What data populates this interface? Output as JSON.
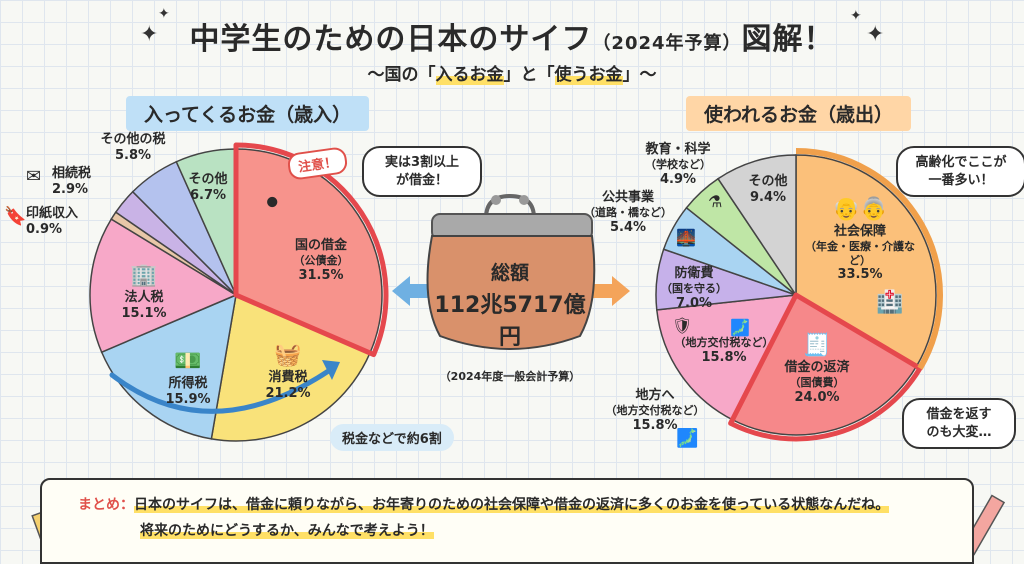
{
  "header": {
    "title": "中学生のための日本のサイフ",
    "title_year": "（2024年予算）",
    "title_end": "図解！",
    "subtitle_pre": "〜国の「",
    "subtitle_in": "入るお金",
    "subtitle_mid": "」と「",
    "subtitle_out": "使うお金",
    "subtitle_post": "」〜"
  },
  "revenue": {
    "title": "入ってくるお金（歳入）"
  },
  "expenditure": {
    "title": "使われるお金（歳出）"
  },
  "wallet": {
    "label": "総額",
    "amount": "112兆5717億円",
    "note": "（2024年度一般会計予算）"
  },
  "bubbles": {
    "debt_warning_tag": "注意！",
    "debt_warning": "実は3割以上\nが借金！",
    "elderly": "高齢化でここが\n一番多い！",
    "repay": "借金を返す\nのも大変…",
    "tax_note": "税金などで約6割"
  },
  "chart_data": [
    {
      "type": "pie",
      "title": "入ってくるお金（歳入）",
      "slices": [
        {
          "name": "国の借金",
          "sub": "（公債金）",
          "value": 31.5,
          "color": "#f7938c",
          "label": "31.5%"
        },
        {
          "name": "消費税",
          "sub": "",
          "value": 21.2,
          "color": "#f9e27a",
          "label": "21.2%"
        },
        {
          "name": "所得税",
          "sub": "",
          "value": 15.9,
          "color": "#a9d4f2",
          "label": "15.9%"
        },
        {
          "name": "法人税",
          "sub": "",
          "value": 15.1,
          "color": "#f7a8c8",
          "label": "15.1%"
        },
        {
          "name": "印紙収入",
          "sub": "",
          "value": 0.9,
          "color": "#e8c7a8",
          "label": "0.9%"
        },
        {
          "name": "相続税",
          "sub": "",
          "value": 2.9,
          "color": "#c9b3e6",
          "label": "2.9%"
        },
        {
          "name": "その他の税",
          "sub": "",
          "value": 5.8,
          "color": "#b4c2ee",
          "label": "5.8%"
        },
        {
          "name": "その他",
          "sub": "",
          "value": 6.7,
          "color": "#b9e2c2",
          "label": "6.7%"
        }
      ]
    },
    {
      "type": "pie",
      "title": "使われるお金（歳出）",
      "slices": [
        {
          "name": "社会保障",
          "sub": "（年金・医療・介護など）",
          "value": 33.5,
          "color": "#fbc07a",
          "label": "33.5%"
        },
        {
          "name": "借金の返済",
          "sub": "（国債費）",
          "value": 24.0,
          "color": "#f6888a",
          "label": "24.0%"
        },
        {
          "name": "地方へ",
          "sub": "（地方交付税など）",
          "value": 15.8,
          "color": "#f7a8c8",
          "label": "15.8%"
        },
        {
          "name": "防衛費",
          "sub": "（国を守る）",
          "value": 7.0,
          "color": "#c6b1ea",
          "label": "7.0%"
        },
        {
          "name": "公共事業",
          "sub": "（道路・橋など）",
          "value": 5.4,
          "color": "#a9d4f2",
          "label": "5.4%"
        },
        {
          "name": "教育・科学",
          "sub": "（学校など）",
          "value": 4.9,
          "color": "#bfe6a6",
          "label": "4.9%"
        },
        {
          "name": "その他",
          "sub": "",
          "value": 9.4,
          "color": "#d3d3d3",
          "label": "9.4%"
        }
      ],
      "inner_label": {
        "sub": "（地方交付税など）",
        "label": "15.8%"
      }
    }
  ],
  "memo": {
    "head": "まとめ：",
    "line1": "日本のサイフは、借金に頼りながら、お年寄りのための社会保障や借金の返済に多くのお金を使っている状態なんだね。",
    "line2": "将来のためにどうするか、みんなで考えよう！"
  },
  "icons": [
    "sparkle-icon",
    "wallet-icon",
    "arrow-left-icon",
    "arrow-right-icon",
    "iron-ball-icon",
    "shopping-basket-icon",
    "money-bills-icon",
    "building-icon",
    "envelope-icon",
    "stamp-icon",
    "elderly-couple-icon",
    "hospital-icon",
    "bill-icon",
    "shield-icon",
    "japan-map-icon",
    "bridge-icon",
    "flask-icon",
    "pencil-icon"
  ]
}
